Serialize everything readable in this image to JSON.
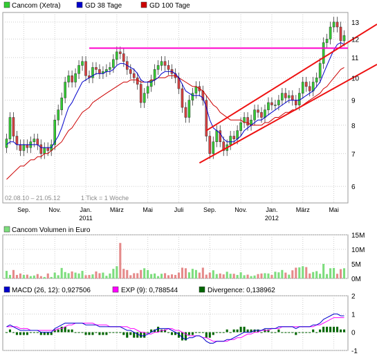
{
  "colors": {
    "up": "#33cc33",
    "down": "#d94040",
    "gd38": "#0000cc",
    "gd100": "#cc0000",
    "hline": "#ff00cc",
    "channel": "#ee1111",
    "macd": "#0000cc",
    "exp": "#ff00ff",
    "divergence": "#006600",
    "volume_up": "#7ddd7d",
    "volume_down": "#e58a8a"
  },
  "chart_data": [
    {
      "type": "candlestick",
      "legend": [
        {
          "key": "price",
          "label": "Cancom (Xetra)"
        },
        {
          "key": "gd38",
          "label": "GD 38 Tage"
        },
        {
          "key": "gd100",
          "label": "GD 100 Tage"
        }
      ],
      "date_range": "02.08.10 – 21.05.12",
      "tick_info": "1 Tick = 1 Woche",
      "x_labels": [
        {
          "week": 5,
          "label": "Sep."
        },
        {
          "week": 14,
          "label": "Nov."
        },
        {
          "week": 23,
          "label": "Jan.",
          "sub": "2011"
        },
        {
          "week": 32,
          "label": "März"
        },
        {
          "week": 41,
          "label": "Mai"
        },
        {
          "week": 50,
          "label": "Juli"
        },
        {
          "week": 59,
          "label": "Sep."
        },
        {
          "week": 68,
          "label": "Nov."
        },
        {
          "week": 77,
          "label": "Jan.",
          "sub": "2012"
        },
        {
          "week": 86,
          "label": "März"
        },
        {
          "week": 95,
          "label": "Mai"
        }
      ],
      "y_ticks": [
        6,
        7,
        8,
        9,
        10,
        11,
        12,
        13
      ],
      "y_scale": "log",
      "ylim": [
        5.55,
        13.6
      ],
      "resistance_level": 11.5,
      "channel": {
        "upper": {
          "from": [
            58,
            7.8
          ],
          "to": [
            107,
            12.8
          ]
        },
        "lower": {
          "from": [
            56,
            6.7
          ],
          "to": [
            107,
            10.6
          ]
        }
      },
      "close": [
        7.5,
        8.3,
        7.6,
        7.3,
        7.1,
        7.3,
        7.2,
        7.4,
        7.5,
        7.3,
        7.0,
        7.2,
        7.1,
        7.3,
        8.2,
        8.6,
        9.1,
        9.8,
        10.1,
        9.8,
        10.2,
        10.6,
        10.8,
        10.1,
        10.0,
        10.5,
        10.4,
        10.2,
        10.3,
        10.4,
        10.5,
        10.9,
        11.3,
        11.2,
        10.8,
        10.4,
        10.2,
        10.0,
        9.7,
        8.9,
        9.3,
        9.6,
        9.9,
        10.4,
        10.6,
        10.8,
        10.6,
        10.4,
        10.2,
        10.0,
        9.5,
        8.7,
        8.3,
        9.0,
        9.3,
        9.6,
        9.4,
        9.0,
        7.6,
        7.0,
        7.4,
        7.8,
        7.4,
        7.1,
        7.3,
        7.6,
        7.5,
        7.8,
        8.1,
        8.3,
        8.0,
        8.2,
        8.6,
        8.5,
        8.3,
        8.6,
        8.9,
        8.8,
        8.8,
        9.0,
        9.3,
        9.1,
        9.2,
        9.0,
        8.8,
        9.3,
        9.8,
        9.6,
        9.4,
        9.8,
        10.0,
        10.7,
        11.8,
        12.0,
        12.7,
        13.0,
        12.7,
        11.9,
        12.2
      ],
      "gd38": [
        7.3,
        7.4,
        7.4,
        7.3,
        7.3,
        7.3,
        7.3,
        7.3,
        7.3,
        7.3,
        7.2,
        7.2,
        7.2,
        7.2,
        7.4,
        7.6,
        7.9,
        8.3,
        8.7,
        8.9,
        9.2,
        9.5,
        9.8,
        9.9,
        10.0,
        10.1,
        10.2,
        10.2,
        10.2,
        10.3,
        10.3,
        10.4,
        10.6,
        10.7,
        10.7,
        10.6,
        10.5,
        10.4,
        10.2,
        9.9,
        9.8,
        9.8,
        9.8,
        9.9,
        10.0,
        10.2,
        10.3,
        10.3,
        10.3,
        10.2,
        10.0,
        9.7,
        9.4,
        9.3,
        9.2,
        9.2,
        9.2,
        9.1,
        8.7,
        8.2,
        7.9,
        7.8,
        7.7,
        7.5,
        7.4,
        7.4,
        7.4,
        7.5,
        7.6,
        7.8,
        7.9,
        8.0,
        8.1,
        8.2,
        8.2,
        8.3,
        8.4,
        8.5,
        8.6,
        8.7,
        8.8,
        8.9,
        9.0,
        9.0,
        9.0,
        9.0,
        9.1,
        9.2,
        9.3,
        9.4,
        9.6,
        9.8,
        10.2,
        10.6,
        11.0,
        11.4,
        11.7,
        11.8,
        11.7
      ],
      "gd100": [
        6.2,
        6.3,
        6.4,
        6.5,
        6.6,
        6.6,
        6.7,
        6.8,
        6.8,
        6.9,
        6.9,
        7.0,
        7.0,
        7.1,
        7.2,
        7.3,
        7.4,
        7.6,
        7.8,
        7.9,
        8.1,
        8.3,
        8.5,
        8.6,
        8.7,
        8.9,
        9.0,
        9.1,
        9.2,
        9.3,
        9.4,
        9.5,
        9.6,
        9.7,
        9.8,
        9.8,
        9.9,
        9.9,
        9.9,
        9.8,
        9.8,
        9.8,
        9.9,
        9.9,
        10.0,
        10.0,
        10.0,
        10.1,
        10.1,
        10.1,
        10.0,
        9.9,
        9.8,
        9.7,
        9.6,
        9.6,
        9.5,
        9.4,
        9.2,
        9.0,
        8.8,
        8.7,
        8.5,
        8.4,
        8.3,
        8.2,
        8.2,
        8.2,
        8.2,
        8.1,
        8.1,
        8.0,
        8.0,
        8.0,
        8.0,
        8.1,
        8.1,
        8.2,
        8.3,
        8.3,
        8.4,
        8.5,
        8.5,
        8.6,
        8.6,
        8.7,
        8.8,
        8.9,
        9.0,
        9.1,
        9.2,
        9.3,
        9.5,
        9.6,
        9.8,
        10.0,
        10.2,
        10.4,
        10.5
      ]
    },
    {
      "type": "bar",
      "legend": "Cancom Volumen in Euro",
      "y_ticks": [
        {
          "v": 0,
          "label": "0M"
        },
        {
          "v": 5,
          "label": "5M"
        },
        {
          "v": 10,
          "label": "10M"
        },
        {
          "v": 15,
          "label": "15M"
        }
      ],
      "ylim": [
        0,
        15
      ],
      "values": [
        2.6,
        1.2,
        2.9,
        1.2,
        1.7,
        1.2,
        1.3,
        0.8,
        1.0,
        1.5,
        0.8,
        0.5,
        1.7,
        0.5,
        2.0,
        1.1,
        3.6,
        2.2,
        1.8,
        2.4,
        2.0,
        1.7,
        2.6,
        1.1,
        1.2,
        1.4,
        2.4,
        1.8,
        2.0,
        0.9,
        1.7,
        3.3,
        4.2,
        12.2,
        3.3,
        2.9,
        1.1,
        1.8,
        1.8,
        2.9,
        3.5,
        2.9,
        1.5,
        1.7,
        0.8,
        1.6,
        1.8,
        1.1,
        1.4,
        1.2,
        2.0,
        3.7,
        3.5,
        2.1,
        3.3,
        2.9,
        2.0,
        3.7,
        1.3,
        2.0,
        2.8,
        1.5,
        1.7,
        1.4,
        2.3,
        1.6,
        1.6,
        1.2,
        2.1,
        1.1,
        1.3,
        0.8,
        1.0,
        1.5,
        1.7,
        1.8,
        1.7,
        1.2,
        2.3,
        2.1,
        2.9,
        2.0,
        1.3,
        2.8,
        3.7,
        3.8,
        4.2,
        3.9,
        1.7,
        2.2,
        2.5,
        1.6,
        5.0,
        1.5,
        3.5,
        3.6,
        1.6,
        3.2,
        3.5
      ]
    },
    {
      "type": "line",
      "legend": [
        {
          "key": "macd",
          "label": "MACD (26, 12): 0,927506"
        },
        {
          "key": "exp",
          "label": "EXP (9): 0,788544"
        },
        {
          "key": "divergence",
          "label": "Divergence: 0,138962"
        }
      ],
      "y_ticks": [
        -1,
        0,
        1,
        2
      ],
      "ylim": [
        -1,
        2
      ],
      "macd": [
        0.3,
        0.4,
        0.3,
        0.2,
        0.1,
        0.1,
        0.1,
        0.1,
        0.1,
        0.1,
        0.0,
        0.0,
        0.0,
        0.0,
        0.2,
        0.3,
        0.4,
        0.5,
        0.5,
        0.5,
        0.5,
        0.5,
        0.5,
        0.4,
        0.4,
        0.4,
        0.4,
        0.3,
        0.3,
        0.3,
        0.3,
        0.3,
        0.3,
        0.3,
        0.2,
        0.1,
        0.1,
        0.0,
        -0.1,
        -0.2,
        -0.2,
        -0.1,
        0.0,
        0.1,
        0.2,
        0.2,
        0.2,
        0.2,
        0.1,
        0.0,
        -0.1,
        -0.3,
        -0.4,
        -0.3,
        -0.3,
        -0.2,
        -0.2,
        -0.3,
        -0.5,
        -0.6,
        -0.6,
        -0.5,
        -0.5,
        -0.5,
        -0.4,
        -0.4,
        -0.3,
        -0.2,
        -0.1,
        0.0,
        0.0,
        0.0,
        0.1,
        0.1,
        0.1,
        0.2,
        0.2,
        0.2,
        0.2,
        0.3,
        0.3,
        0.3,
        0.3,
        0.3,
        0.2,
        0.3,
        0.3,
        0.3,
        0.3,
        0.4,
        0.4,
        0.5,
        0.7,
        0.8,
        0.9,
        1.0,
        1.0,
        0.9,
        0.9
      ],
      "exp": [
        0.3,
        0.3,
        0.3,
        0.3,
        0.2,
        0.2,
        0.2,
        0.1,
        0.1,
        0.1,
        0.1,
        0.1,
        0.1,
        0.1,
        0.1,
        0.2,
        0.2,
        0.3,
        0.4,
        0.4,
        0.5,
        0.5,
        0.5,
        0.5,
        0.5,
        0.5,
        0.4,
        0.4,
        0.4,
        0.4,
        0.3,
        0.3,
        0.3,
        0.3,
        0.3,
        0.3,
        0.2,
        0.2,
        0.1,
        0.0,
        0.0,
        -0.1,
        -0.1,
        0.0,
        0.0,
        0.1,
        0.1,
        0.2,
        0.2,
        0.1,
        0.1,
        0.0,
        -0.1,
        -0.2,
        -0.2,
        -0.2,
        -0.2,
        -0.3,
        -0.3,
        -0.4,
        -0.5,
        -0.5,
        -0.5,
        -0.5,
        -0.5,
        -0.4,
        -0.4,
        -0.3,
        -0.3,
        -0.2,
        -0.1,
        -0.1,
        0.0,
        0.0,
        0.1,
        0.1,
        0.1,
        0.2,
        0.2,
        0.2,
        0.3,
        0.3,
        0.3,
        0.3,
        0.3,
        0.3,
        0.3,
        0.3,
        0.3,
        0.3,
        0.4,
        0.4,
        0.5,
        0.6,
        0.7,
        0.8,
        0.8,
        0.8,
        0.8
      ]
    }
  ]
}
